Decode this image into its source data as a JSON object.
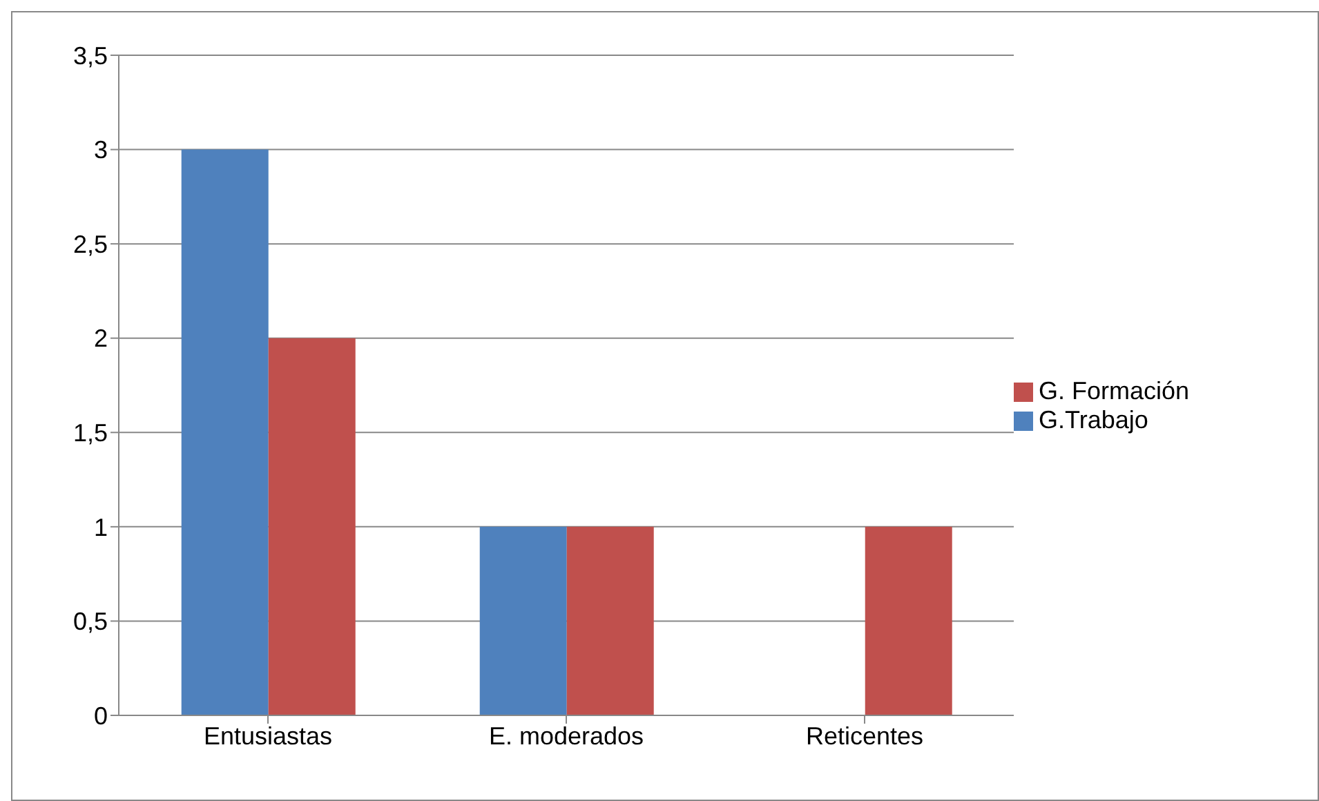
{
  "chart_data": {
    "type": "bar",
    "categories": [
      "Entusiastas",
      "E. moderados",
      "Reticentes"
    ],
    "series": [
      {
        "name": "G.Trabajo",
        "color": "#4f81bd",
        "values": [
          3,
          1,
          0
        ]
      },
      {
        "name": "G. Formación",
        "color": "#c0504d",
        "values": [
          2,
          1,
          1
        ]
      }
    ],
    "ylim": [
      0,
      3.5
    ],
    "yticks": [
      0,
      {
        "value": 0.5,
        "label": "0,5"
      },
      1,
      {
        "value": 1.5,
        "label": "1,5"
      },
      2,
      {
        "value": 2.5,
        "label": "2,5"
      },
      3,
      {
        "value": 3.5,
        "label": "3,5"
      }
    ],
    "grid": "y",
    "legend": "right"
  }
}
